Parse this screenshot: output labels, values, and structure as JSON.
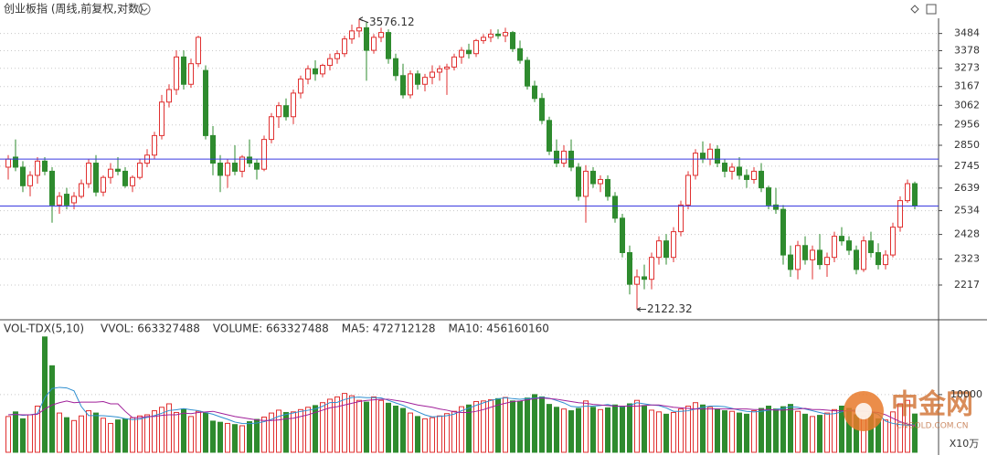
{
  "chart_data": [
    {
      "type": "candlestick",
      "title": "创业板指 (周线,前复权,对数)",
      "log_scale": true,
      "ylim": [
        2100,
        3610
      ],
      "yticks": [
        2217,
        2323,
        2428,
        2534,
        2639,
        2745,
        2850,
        2956,
        3062,
        3167,
        3273,
        3378,
        3484
      ],
      "grid": true,
      "up_color": "#e03030",
      "down_color": "#2e8b2e",
      "hlines": [
        2780,
        2555
      ],
      "hline_color": "#3a3ae0",
      "annotations": [
        {
          "label": "3576.12",
          "value": 3576.12
        },
        {
          "label": "2122.32",
          "value": 2122.32
        }
      ],
      "candles": [
        [
          2740,
          2800,
          2680,
          2780
        ],
        [
          2790,
          2880,
          2720,
          2740
        ],
        [
          2740,
          2770,
          2620,
          2650
        ],
        [
          2650,
          2720,
          2600,
          2700
        ],
        [
          2700,
          2790,
          2660,
          2770
        ],
        [
          2770,
          2790,
          2700,
          2720
        ],
        [
          2720,
          2740,
          2480,
          2560
        ],
        [
          2560,
          2620,
          2520,
          2600
        ],
        [
          2610,
          2640,
          2540,
          2560
        ],
        [
          2570,
          2620,
          2540,
          2600
        ],
        [
          2600,
          2680,
          2590,
          2660
        ],
        [
          2660,
          2780,
          2640,
          2760
        ],
        [
          2760,
          2800,
          2600,
          2620
        ],
        [
          2620,
          2700,
          2600,
          2690
        ],
        [
          2690,
          2760,
          2660,
          2730
        ],
        [
          2730,
          2790,
          2700,
          2720
        ],
        [
          2720,
          2740,
          2640,
          2650
        ],
        [
          2650,
          2700,
          2620,
          2690
        ],
        [
          2690,
          2780,
          2680,
          2760
        ],
        [
          2760,
          2830,
          2740,
          2800
        ],
        [
          2800,
          2920,
          2780,
          2900
        ],
        [
          2900,
          3120,
          2880,
          3080
        ],
        [
          3080,
          3180,
          3050,
          3150
        ],
        [
          3150,
          3380,
          3120,
          3340
        ],
        [
          3340,
          3380,
          3150,
          3180
        ],
        [
          3180,
          3330,
          3160,
          3300
        ],
        [
          3300,
          3470,
          3280,
          3460
        ],
        [
          3260,
          3290,
          2880,
          2900
        ],
        [
          2900,
          2950,
          2700,
          2760
        ],
        [
          2760,
          2800,
          2620,
          2700
        ],
        [
          2700,
          2780,
          2640,
          2760
        ],
        [
          2760,
          2850,
          2700,
          2720
        ],
        [
          2720,
          2800,
          2690,
          2790
        ],
        [
          2790,
          2880,
          2740,
          2760
        ],
        [
          2760,
          2780,
          2680,
          2730
        ],
        [
          2730,
          2900,
          2720,
          2880
        ],
        [
          2880,
          3020,
          2860,
          3000
        ],
        [
          3000,
          3080,
          2940,
          3060
        ],
        [
          3060,
          3100,
          2980,
          3000
        ],
        [
          3000,
          3150,
          2960,
          3130
        ],
        [
          3130,
          3230,
          3100,
          3210
        ],
        [
          3210,
          3290,
          3180,
          3270
        ],
        [
          3270,
          3320,
          3200,
          3240
        ],
        [
          3240,
          3300,
          3220,
          3290
        ],
        [
          3290,
          3360,
          3260,
          3330
        ],
        [
          3330,
          3380,
          3300,
          3360
        ],
        [
          3360,
          3470,
          3340,
          3450
        ],
        [
          3450,
          3540,
          3420,
          3500
        ],
        [
          3500,
          3576.12,
          3460,
          3520
        ],
        [
          3520,
          3560,
          3200,
          3380
        ],
        [
          3380,
          3480,
          3360,
          3460
        ],
        [
          3460,
          3520,
          3430,
          3490
        ],
        [
          3490,
          3510,
          3300,
          3330
        ],
        [
          3330,
          3360,
          3200,
          3230
        ],
        [
          3230,
          3300,
          3100,
          3120
        ],
        [
          3120,
          3260,
          3100,
          3240
        ],
        [
          3240,
          3260,
          3150,
          3180
        ],
        [
          3180,
          3240,
          3140,
          3220
        ],
        [
          3220,
          3290,
          3180,
          3250
        ],
        [
          3250,
          3290,
          3200,
          3270
        ],
        [
          3270,
          3300,
          3120,
          3280
        ],
        [
          3280,
          3360,
          3260,
          3340
        ],
        [
          3340,
          3400,
          3300,
          3380
        ],
        [
          3380,
          3420,
          3330,
          3360
        ],
        [
          3360,
          3450,
          3340,
          3440
        ],
        [
          3440,
          3480,
          3420,
          3460
        ],
        [
          3460,
          3510,
          3430,
          3480
        ],
        [
          3480,
          3510,
          3450,
          3470
        ],
        [
          3470,
          3520,
          3430,
          3490
        ],
        [
          3490,
          3500,
          3370,
          3390
        ],
        [
          3390,
          3440,
          3300,
          3320
        ],
        [
          3320,
          3340,
          3150,
          3170
        ],
        [
          3170,
          3200,
          3080,
          3100
        ],
        [
          3100,
          3130,
          2960,
          2980
        ],
        [
          2980,
          3000,
          2800,
          2820
        ],
        [
          2820,
          2880,
          2740,
          2760
        ],
        [
          2760,
          2850,
          2740,
          2820
        ],
        [
          2820,
          2880,
          2720,
          2740
        ],
        [
          2740,
          2760,
          2580,
          2600
        ],
        [
          2600,
          2750,
          2480,
          2720
        ],
        [
          2720,
          2740,
          2640,
          2660
        ],
        [
          2660,
          2700,
          2620,
          2680
        ],
        [
          2680,
          2700,
          2580,
          2600
        ],
        [
          2600,
          2620,
          2480,
          2500
        ],
        [
          2500,
          2520,
          2330,
          2350
        ],
        [
          2350,
          2380,
          2180,
          2220
        ],
        [
          2220,
          2280,
          2122.32,
          2250
        ],
        [
          2250,
          2300,
          2200,
          2240
        ],
        [
          2240,
          2350,
          2200,
          2330
        ],
        [
          2330,
          2420,
          2300,
          2400
        ],
        [
          2400,
          2430,
          2300,
          2330
        ],
        [
          2330,
          2460,
          2310,
          2440
        ],
        [
          2440,
          2580,
          2420,
          2560
        ],
        [
          2560,
          2720,
          2540,
          2700
        ],
        [
          2700,
          2830,
          2680,
          2810
        ],
        [
          2810,
          2870,
          2760,
          2780
        ],
        [
          2780,
          2860,
          2750,
          2830
        ],
        [
          2830,
          2850,
          2740,
          2760
        ],
        [
          2760,
          2780,
          2690,
          2720
        ],
        [
          2720,
          2760,
          2680,
          2740
        ],
        [
          2740,
          2790,
          2680,
          2700
        ],
        [
          2700,
          2730,
          2640,
          2680
        ],
        [
          2680,
          2740,
          2660,
          2720
        ],
        [
          2720,
          2760,
          2620,
          2640
        ],
        [
          2640,
          2650,
          2540,
          2560
        ],
        [
          2560,
          2640,
          2520,
          2540
        ],
        [
          2540,
          2560,
          2300,
          2340
        ],
        [
          2340,
          2380,
          2250,
          2280
        ],
        [
          2280,
          2400,
          2240,
          2380
        ],
        [
          2380,
          2420,
          2300,
          2320
        ],
        [
          2320,
          2380,
          2240,
          2360
        ],
        [
          2360,
          2430,
          2280,
          2300
        ],
        [
          2300,
          2350,
          2250,
          2330
        ],
        [
          2330,
          2440,
          2310,
          2420
        ],
        [
          2420,
          2460,
          2380,
          2400
        ],
        [
          2400,
          2420,
          2340,
          2360
        ],
        [
          2360,
          2380,
          2260,
          2280
        ],
        [
          2280,
          2420,
          2270,
          2400
        ],
        [
          2400,
          2440,
          2330,
          2350
        ],
        [
          2350,
          2390,
          2280,
          2300
        ],
        [
          2300,
          2360,
          2280,
          2340
        ],
        [
          2340,
          2480,
          2330,
          2460
        ],
        [
          2460,
          2600,
          2440,
          2580
        ],
        [
          2580,
          2680,
          2570,
          2660
        ],
        [
          2660,
          2670,
          2540,
          2555
        ]
      ]
    },
    {
      "type": "volume",
      "title": "VOL-TDX(5,10)",
      "legend": [
        {
          "label": "VVOL: 663327488",
          "color": "#222222"
        },
        {
          "label": "VOLUME: 663327488",
          "color": "#2f8fd0"
        },
        {
          "label": "MA5: 472712128",
          "color": "#2f8fd0"
        },
        {
          "label": "MA10: 456160160",
          "color": "#a0209a"
        }
      ],
      "unit": "X10万",
      "ylim": [
        0,
        20600
      ],
      "yticks": [
        10000
      ],
      "values": [
        6200,
        7000,
        5800,
        6500,
        8000,
        20000,
        15000,
        6800,
        6000,
        5500,
        6300,
        7200,
        6800,
        5900,
        5000,
        5600,
        5800,
        6000,
        6300,
        6500,
        7200,
        7800,
        8400,
        6900,
        7500,
        6200,
        7100,
        6800,
        5400,
        5200,
        5000,
        4800,
        4600,
        5300,
        5700,
        6100,
        6800,
        7300,
        6900,
        7000,
        7400,
        7800,
        8100,
        8600,
        9200,
        9600,
        10200,
        9800,
        9000,
        8700,
        9600,
        9000,
        8500,
        8000,
        7600,
        6800,
        6200,
        5800,
        6000,
        6300,
        6700,
        7100,
        7900,
        8200,
        8800,
        8900,
        9100,
        9300,
        9500,
        8900,
        8800,
        9400,
        10000,
        9600,
        8300,
        7800,
        7500,
        7200,
        7600,
        8900,
        7800,
        7400,
        7700,
        8200,
        7900,
        8400,
        9000,
        8100,
        7300,
        7000,
        6600,
        6900,
        7500,
        8000,
        8600,
        8200,
        7800,
        7500,
        7200,
        7100,
        6800,
        6600,
        7200,
        7600,
        8000,
        7500,
        7900,
        8300,
        7100,
        6600,
        6200,
        6400,
        6800,
        7400,
        8000,
        7600,
        6500,
        6300,
        6700,
        5800,
        5600,
        7000,
        8400,
        9000,
        6633
      ],
      "series": [
        {
          "name": "MA5",
          "color": "#2f8fd0",
          "values": [
            6500,
            6600,
            6400,
            6500,
            6700,
            9460,
            11060,
            11260,
            11160,
            10660,
            7920,
            6360,
            6360,
            6340,
            6240,
            6100,
            5820,
            5660,
            5740,
            6040,
            6360,
            6760,
            7240,
            7360,
            7560,
            7360,
            7220,
            6900,
            6600,
            6140,
            5720,
            5240,
            5000,
            4980,
            5080,
            5300,
            5700,
            6240,
            6560,
            6820,
            7080,
            7280,
            7500,
            7980,
            8620,
            8660,
            9140,
            9480,
            9560,
            9460,
            9460,
            9420,
            9000,
            8560,
            8140,
            7580,
            7020,
            6480,
            6140,
            6220,
            6340,
            6620,
            7200,
            7660,
            8140,
            8580,
            8980,
            9260,
            9440,
            9300,
            9200,
            9300,
            9380,
            9520,
            9380,
            8980,
            8560,
            7960,
            7850,
            8000,
            8000,
            8100,
            8280,
            8000,
            7900,
            8100,
            8600,
            8400,
            8200,
            8100,
            7700,
            7100,
            7100,
            7200,
            7500,
            7800,
            8000,
            8000,
            7900,
            7600,
            7300,
            7100,
            7000,
            7100,
            7300,
            7400,
            7600,
            7900,
            7800,
            7500,
            7200,
            6900,
            6600,
            6700,
            7000,
            7300,
            7300,
            7200,
            7000,
            6600,
            5400,
            5000,
            4800,
            4700,
            4727
          ]
        },
        {
          "name": "MA10",
          "color": "#a0209a",
          "values": [
            6500,
            6550,
            6500,
            6500,
            6600,
            7500,
            8200,
            8600,
            8900,
            8600,
            8700,
            8700,
            8700,
            8800,
            8400,
            8400,
            7100,
            6000,
            6000,
            6200,
            6200,
            6400,
            6500,
            6500,
            6800,
            6700,
            6900,
            7000,
            7100,
            6800,
            6500,
            6200,
            6000,
            5800,
            5600,
            5500,
            5500,
            5600,
            5800,
            5900,
            6200,
            6500,
            6900,
            7300,
            7700,
            7900,
            8200,
            8500,
            8800,
            9000,
            9100,
            9200,
            9200,
            9000,
            8800,
            8500,
            8200,
            8000,
            7800,
            7500,
            7300,
            7000,
            6900,
            6900,
            7100,
            7400,
            7800,
            8200,
            8500,
            8800,
            8900,
            9100,
            9300,
            9400,
            9300,
            9200,
            9000,
            8800,
            8600,
            8500,
            8300,
            8200,
            8100,
            8000,
            8000,
            8000,
            8000,
            8100,
            8200,
            8200,
            8000,
            7800,
            7700,
            7600,
            7500,
            7500,
            7500,
            7500,
            7500,
            7500,
            7500,
            7500,
            7400,
            7400,
            7400,
            7300,
            7300,
            7400,
            7500,
            7600,
            7400,
            7400,
            7300,
            7200,
            7200,
            7200,
            7100,
            7100,
            7000,
            6900,
            6500,
            5900,
            5300,
            4900,
            4562
          ]
        }
      ]
    },
    {
      "type": "watermark",
      "title": "中金网",
      "subtitle": "CNGOLD.COM.CN"
    }
  ]
}
